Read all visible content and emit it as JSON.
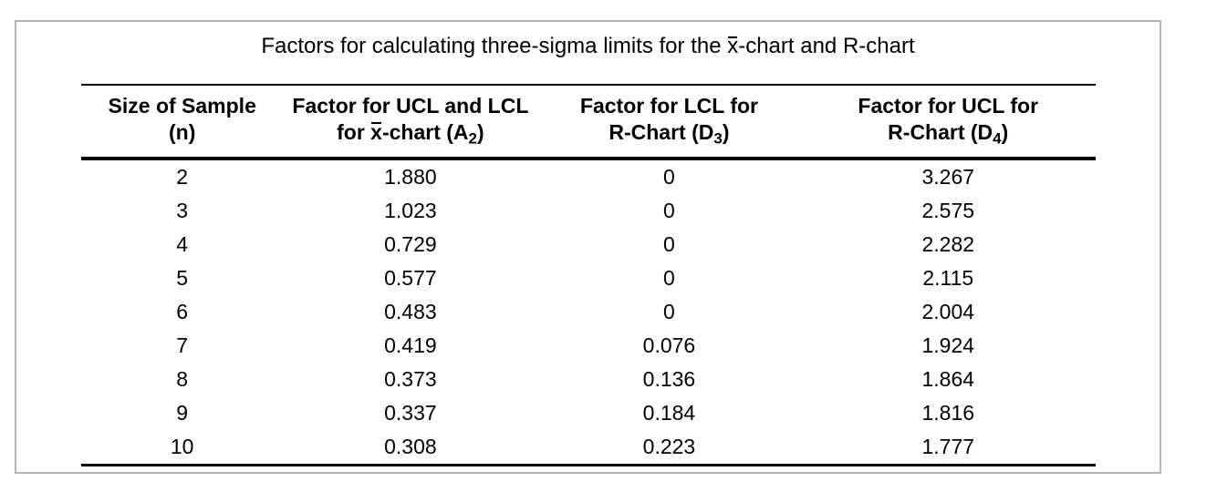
{
  "title": {
    "text": "Factors for calculating three-sigma limits for the x̄-chart and R-chart",
    "parts": [
      {
        "t": "Factors for calculating three-sigma limits for the "
      },
      {
        "t": "x",
        "overbar": true
      },
      {
        "t": "-chart and R-chart"
      }
    ]
  },
  "table": {
    "columns": [
      {
        "key": "n",
        "line1": "Size of Sample",
        "line2_parts": [
          {
            "t": "(n)"
          }
        ]
      },
      {
        "key": "a2",
        "line1": "Factor for UCL and LCL",
        "line2_parts": [
          {
            "t": "for "
          },
          {
            "t": "x",
            "overbar": true
          },
          {
            "t": "-chart (A"
          },
          {
            "t": "2",
            "sub": true
          },
          {
            "t": ")"
          }
        ]
      },
      {
        "key": "d3",
        "line1": "Factor for LCL for",
        "line2_parts": [
          {
            "t": "R-Chart (D"
          },
          {
            "t": "3",
            "sub": true
          },
          {
            "t": ")"
          }
        ]
      },
      {
        "key": "d4",
        "line1": "Factor for UCL for",
        "line2_parts": [
          {
            "t": "R-Chart (D"
          },
          {
            "t": "4",
            "sub": true
          },
          {
            "t": ")"
          }
        ]
      }
    ],
    "rows": [
      {
        "n": "2",
        "a2": "1.880",
        "d3": "0",
        "d4": "3.267"
      },
      {
        "n": "3",
        "a2": "1.023",
        "d3": "0",
        "d4": "2.575"
      },
      {
        "n": "4",
        "a2": "0.729",
        "d3": "0",
        "d4": "2.282"
      },
      {
        "n": "5",
        "a2": "0.577",
        "d3": "0",
        "d4": "2.115"
      },
      {
        "n": "6",
        "a2": "0.483",
        "d3": "0",
        "d4": "2.004"
      },
      {
        "n": "7",
        "a2": "0.419",
        "d3": "0.076",
        "d4": "1.924"
      },
      {
        "n": "8",
        "a2": "0.373",
        "d3": "0.136",
        "d4": "1.864"
      },
      {
        "n": "9",
        "a2": "0.337",
        "d3": "0.184",
        "d4": "1.816"
      },
      {
        "n": "10",
        "a2": "0.308",
        "d3": "0.223",
        "d4": "1.777"
      }
    ]
  },
  "chart_data": {
    "type": "table",
    "title": "Factors for calculating three-sigma limits for the x̄-chart and R-chart",
    "columns": [
      "Size of Sample (n)",
      "Factor for UCL and LCL for x̄-chart (A2)",
      "Factor for LCL for R-Chart (D3)",
      "Factor for UCL for R-Chart (D4)"
    ],
    "rows": [
      [
        2,
        1.88,
        0,
        3.267
      ],
      [
        3,
        1.023,
        0,
        2.575
      ],
      [
        4,
        0.729,
        0,
        2.282
      ],
      [
        5,
        0.577,
        0,
        2.115
      ],
      [
        6,
        0.483,
        0,
        2.004
      ],
      [
        7,
        0.419,
        0.076,
        1.924
      ],
      [
        8,
        0.373,
        0.136,
        1.864
      ],
      [
        9,
        0.337,
        0.184,
        1.816
      ],
      [
        10,
        0.308,
        0.223,
        1.777
      ]
    ]
  },
  "colors": {
    "text": "#000000",
    "rule": "#000000",
    "frame_border": "#b5b5b5",
    "background": "#ffffff"
  }
}
